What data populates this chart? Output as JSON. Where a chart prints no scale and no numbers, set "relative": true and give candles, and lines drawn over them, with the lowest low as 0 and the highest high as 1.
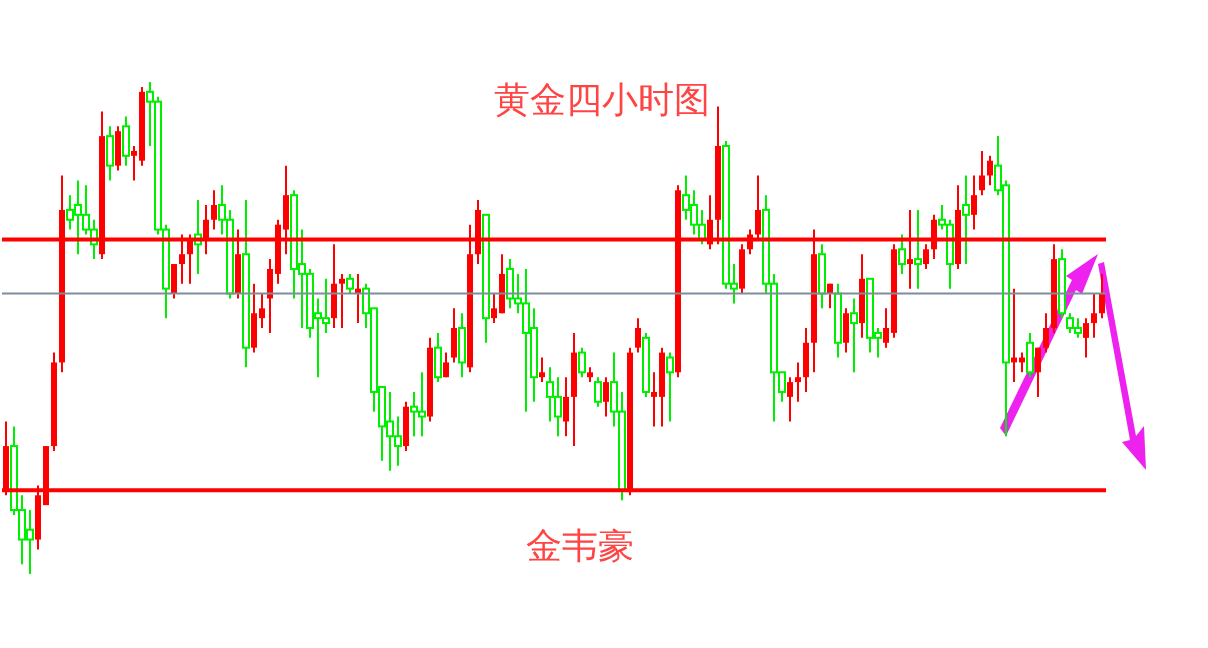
{
  "chart_data": {
    "type": "candlestick",
    "title": "黄金四小时图",
    "annotations": [
      "金韦豪"
    ],
    "relative": true,
    "tick_labels": false,
    "categories": [
      null,
      null,
      null,
      null,
      null,
      null,
      null,
      null,
      null,
      null,
      null,
      null,
      null,
      null,
      null,
      null,
      null,
      null,
      null,
      null,
      null,
      null,
      null,
      null,
      null,
      null,
      null,
      null,
      null,
      null,
      null,
      null,
      null,
      null,
      null,
      null,
      null,
      null,
      null,
      null,
      null,
      null,
      null,
      null,
      null,
      null,
      null,
      null,
      null,
      null,
      null,
      null,
      null,
      null,
      null,
      null,
      null,
      null,
      null,
      null,
      null,
      null,
      null,
      null,
      null,
      null,
      null,
      null,
      null,
      null,
      null,
      null,
      null,
      null,
      null,
      null,
      null,
      null,
      null,
      null,
      null,
      null,
      null,
      null,
      null,
      null,
      null,
      null,
      null,
      null,
      null,
      null,
      null,
      null,
      null,
      null,
      null,
      null,
      null,
      null,
      null,
      null,
      null,
      null,
      null,
      null,
      null,
      null,
      null,
      null,
      null,
      null,
      null,
      null,
      null,
      null,
      null,
      null,
      null,
      null,
      null,
      null,
      null,
      null,
      null,
      null,
      null,
      null,
      null,
      null,
      null,
      null,
      null,
      null,
      null,
      null,
      null,
      null
    ],
    "ohlc": [
      [
        0.17,
        0.31,
        0.16,
        0.26
      ],
      [
        0.26,
        0.3,
        0.12,
        0.13
      ],
      [
        0.13,
        0.16,
        0.02,
        0.07
      ],
      [
        0.09,
        0.13,
        0,
        0.07
      ],
      [
        0.07,
        0.18,
        0.05,
        0.16
      ],
      [
        0.14,
        0.26,
        0.14,
        0.26
      ],
      [
        0.26,
        0.45,
        0.25,
        0.43
      ],
      [
        0.43,
        0.81,
        0.41,
        0.74
      ],
      [
        0.74,
        0.77,
        0.7,
        0.72
      ],
      [
        0.75,
        0.8,
        0.65,
        0.73
      ],
      [
        0.73,
        0.79,
        0.69,
        0.7
      ],
      [
        0.7,
        0.72,
        0.64,
        0.67
      ],
      [
        0.65,
        0.94,
        0.64,
        0.89
      ],
      [
        0.89,
        0.91,
        0.8,
        0.83
      ],
      [
        0.83,
        0.91,
        0.82,
        0.9
      ],
      [
        0.91,
        0.93,
        0.83,
        0.85
      ],
      [
        0.85,
        0.87,
        0.8,
        0.86
      ],
      [
        0.84,
        0.99,
        0.83,
        0.98
      ],
      [
        0.98,
        1,
        0.87,
        0.96
      ],
      [
        0.96,
        0.97,
        0.69,
        0.7
      ],
      [
        0.7,
        0.71,
        0.52,
        0.58
      ],
      [
        0.57,
        0.63,
        0.56,
        0.63
      ],
      [
        0.63,
        0.69,
        0.59,
        0.65
      ],
      [
        0.65,
        0.69,
        0.59,
        0.68
      ],
      [
        0.69,
        0.76,
        0.61,
        0.67
      ],
      [
        0.68,
        0.75,
        0.65,
        0.72
      ],
      [
        0.72,
        0.78,
        0.7,
        0.75
      ],
      [
        0.75,
        0.79,
        0.69,
        0.72
      ],
      [
        0.72,
        0.74,
        0.56,
        0.57
      ],
      [
        0.57,
        0.7,
        0.56,
        0.65
      ],
      [
        0.65,
        0.76,
        0.42,
        0.46
      ],
      [
        0.46,
        0.59,
        0.45,
        0.53
      ],
      [
        0.52,
        0.57,
        0.5,
        0.54
      ],
      [
        0.56,
        0.64,
        0.49,
        0.62
      ],
      [
        0.61,
        0.72,
        0.59,
        0.71
      ],
      [
        0.7,
        0.83,
        0.65,
        0.77
      ],
      [
        0.77,
        0.78,
        0.56,
        0.62
      ],
      [
        0.63,
        0.7,
        0.5,
        0.61
      ],
      [
        0.61,
        0.62,
        0.48,
        0.5
      ],
      [
        0.53,
        0.56,
        0.4,
        0.52
      ],
      [
        0.52,
        0.6,
        0.49,
        0.51
      ],
      [
        0.52,
        0.67,
        0.5,
        0.59
      ],
      [
        0.59,
        0.61,
        0.5,
        0.6
      ],
      [
        0.6,
        0.61,
        0.57,
        0.58
      ],
      [
        0.57,
        0.61,
        0.51,
        0.58
      ],
      [
        0.58,
        0.59,
        0.5,
        0.53
      ],
      [
        0.54,
        0.54,
        0.33,
        0.37
      ],
      [
        0.38,
        0.38,
        0.23,
        0.3
      ],
      [
        0.31,
        0.37,
        0.21,
        0.28
      ],
      [
        0.28,
        0.32,
        0.22,
        0.26
      ],
      [
        0.26,
        0.35,
        0.25,
        0.34
      ],
      [
        0.34,
        0.37,
        0.28,
        0.33
      ],
      [
        0.33,
        0.41,
        0.28,
        0.32
      ],
      [
        0.32,
        0.48,
        0.31,
        0.46
      ],
      [
        0.46,
        0.49,
        0.39,
        0.4
      ],
      [
        0.4,
        0.45,
        0.4,
        0.43
      ],
      [
        0.44,
        0.54,
        0.43,
        0.5
      ],
      [
        0.5,
        0.53,
        0.4,
        0.43
      ],
      [
        0.42,
        0.71,
        0.41,
        0.65
      ],
      [
        0.65,
        0.76,
        0.63,
        0.74
      ],
      [
        0.73,
        0.73,
        0.47,
        0.52
      ],
      [
        0.52,
        0.57,
        0.51,
        0.54
      ],
      [
        0.53,
        0.65,
        0.53,
        0.61
      ],
      [
        0.62,
        0.64,
        0.54,
        0.56
      ],
      [
        0.56,
        0.61,
        0.53,
        0.55
      ],
      [
        0.55,
        0.62,
        0.33,
        0.49
      ],
      [
        0.5,
        0.54,
        0.35,
        0.4
      ],
      [
        0.4,
        0.44,
        0.39,
        0.41
      ],
      [
        0.39,
        0.42,
        0.31,
        0.36
      ],
      [
        0.36,
        0.4,
        0.28,
        0.32
      ],
      [
        0.31,
        0.4,
        0.28,
        0.36
      ],
      [
        0.36,
        0.49,
        0.26,
        0.45
      ],
      [
        0.45,
        0.46,
        0.4,
        0.41
      ],
      [
        0.4,
        0.42,
        0.39,
        0.41
      ],
      [
        0.39,
        0.4,
        0.34,
        0.35
      ],
      [
        0.35,
        0.4,
        0.32,
        0.39
      ],
      [
        0.39,
        0.45,
        0.3,
        0.33
      ],
      [
        0.33,
        0.37,
        0.15,
        0.17
      ],
      [
        0.17,
        0.46,
        0.16,
        0.45
      ],
      [
        0.46,
        0.52,
        0.45,
        0.5
      ],
      [
        0.48,
        0.49,
        0.36,
        0.37
      ],
      [
        0.36,
        0.41,
        0.3,
        0.37
      ],
      [
        0.36,
        0.46,
        0.3,
        0.45
      ],
      [
        0.44,
        0.45,
        0.31,
        0.41
      ],
      [
        0.41,
        0.79,
        0.4,
        0.78
      ],
      [
        0.77,
        0.81,
        0.72,
        0.74
      ],
      [
        0.75,
        0.78,
        0.69,
        0.71
      ],
      [
        0.71,
        0.74,
        0.67,
        0.68
      ],
      [
        0.67,
        0.77,
        0.66,
        0.72
      ],
      [
        0.72,
        0.95,
        0.67,
        0.87
      ],
      [
        0.87,
        0.88,
        0.58,
        0.59
      ],
      [
        0.59,
        0.63,
        0.55,
        0.58
      ],
      [
        0.58,
        0.67,
        0.57,
        0.66
      ],
      [
        0.66,
        0.7,
        0.65,
        0.69
      ],
      [
        0.69,
        0.81,
        0.68,
        0.74
      ],
      [
        0.74,
        0.77,
        0.57,
        0.59
      ],
      [
        0.59,
        0.61,
        0.31,
        0.41
      ],
      [
        0.41,
        0.41,
        0.35,
        0.37
      ],
      [
        0.36,
        0.4,
        0.31,
        0.39
      ],
      [
        0.39,
        0.43,
        0.35,
        0.4
      ],
      [
        0.4,
        0.5,
        0.37,
        0.47
      ],
      [
        0.47,
        0.7,
        0.41,
        0.65
      ],
      [
        0.65,
        0.67,
        0.54,
        0.57
      ],
      [
        0.57,
        0.59,
        0.54,
        0.59
      ],
      [
        0.57,
        0.59,
        0.44,
        0.47
      ],
      [
        0.47,
        0.54,
        0.45,
        0.53
      ],
      [
        0.53,
        0.56,
        0.41,
        0.51
      ],
      [
        0.51,
        0.65,
        0.48,
        0.6
      ],
      [
        0.6,
        0.6,
        0.45,
        0.48
      ],
      [
        0.49,
        0.5,
        0.44,
        0.48
      ],
      [
        0.47,
        0.54,
        0.46,
        0.5
      ],
      [
        0.49,
        0.67,
        0.48,
        0.66
      ],
      [
        0.66,
        0.69,
        0.61,
        0.63
      ],
      [
        0.63,
        0.74,
        0.58,
        0.64
      ],
      [
        0.64,
        0.74,
        0.58,
        0.63
      ],
      [
        0.63,
        0.67,
        0.62,
        0.66
      ],
      [
        0.66,
        0.73,
        0.64,
        0.72
      ],
      [
        0.72,
        0.75,
        0.7,
        0.71
      ],
      [
        0.71,
        0.72,
        0.58,
        0.63
      ],
      [
        0.63,
        0.79,
        0.62,
        0.74
      ],
      [
        0.75,
        0.81,
        0.63,
        0.73
      ],
      [
        0.73,
        0.81,
        0.7,
        0.77
      ],
      [
        0.78,
        0.86,
        0.77,
        0.81
      ],
      [
        0.81,
        0.85,
        0.79,
        0.84
      ],
      [
        0.83,
        0.89,
        0.77,
        0.78
      ],
      [
        0.79,
        0.8,
        0.28,
        0.43
      ],
      [
        0.43,
        0.58,
        0.39,
        0.44
      ],
      [
        0.43,
        0.45,
        0.41,
        0.44
      ],
      [
        0.47,
        0.49,
        0.4,
        0.41
      ],
      [
        0.41,
        0.46,
        0.36,
        0.46
      ],
      [
        0.46,
        0.53,
        0.45,
        0.5
      ],
      [
        0.5,
        0.67,
        0.49,
        0.64
      ],
      [
        0.64,
        0.66,
        0.52,
        0.53
      ],
      [
        0.52,
        0.53,
        0.49,
        0.5
      ],
      [
        0.5,
        0.52,
        0.48,
        0.49
      ],
      [
        0.48,
        0.52,
        0.44,
        0.51
      ],
      [
        0.51,
        0.57,
        0.48,
        0.53
      ],
      [
        0.53,
        0.61,
        0.52,
        0.57
      ]
    ],
    "colors": [
      "#ff0000",
      "#00ee00",
      "#00ee00",
      "#00ee00",
      "#ff0000",
      "#ff0000",
      "#ff0000",
      "#ff0000",
      "#00ee00",
      "#00ee00",
      "#00ee00",
      "#00ee00",
      "#ff0000",
      "#00ee00",
      "#ff0000",
      "#00ee00",
      "#ff0000",
      "#ff0000",
      "#00ee00",
      "#00ee00",
      "#00ee00",
      "#ff0000",
      "#ff0000",
      "#ff0000",
      "#00ee00",
      "#ff0000",
      "#ff0000",
      "#00ee00",
      "#00ee00",
      "#ff0000",
      "#00ee00",
      "#ff0000",
      "#ff0000",
      "#ff0000",
      "#ff0000",
      "#ff0000",
      "#00ee00",
      "#00ee00",
      "#00ee00",
      "#00ee00",
      "#00ee00",
      "#ff0000",
      "#ff0000",
      "#00ee00",
      "#ff0000",
      "#00ee00",
      "#00ee00",
      "#00ee00",
      "#00ee00",
      "#00ee00",
      "#ff0000",
      "#00ee00",
      "#00ee00",
      "#ff0000",
      "#00ee00",
      "#ff0000",
      "#ff0000",
      "#00ee00",
      "#ff0000",
      "#ff0000",
      "#00ee00",
      "#ff0000",
      "#ff0000",
      "#00ee00",
      "#00ee00",
      "#00ee00",
      "#00ee00",
      "#ff0000",
      "#00ee00",
      "#00ee00",
      "#ff0000",
      "#ff0000",
      "#00ee00",
      "#ff0000",
      "#00ee00",
      "#ff0000",
      "#00ee00",
      "#00ee00",
      "#ff0000",
      "#ff0000",
      "#00ee00",
      "#ff0000",
      "#ff0000",
      "#00ee00",
      "#ff0000",
      "#00ee00",
      "#00ee00",
      "#00ee00",
      "#ff0000",
      "#ff0000",
      "#00ee00",
      "#00ee00",
      "#ff0000",
      "#ff0000",
      "#ff0000",
      "#00ee00",
      "#00ee00",
      "#00ee00",
      "#ff0000",
      "#ff0000",
      "#ff0000",
      "#ff0000",
      "#00ee00",
      "#ff0000",
      "#00ee00",
      "#ff0000",
      "#00ee00",
      "#ff0000",
      "#00ee00",
      "#00ee00",
      "#ff0000",
      "#ff0000",
      "#00ee00",
      "#ff0000",
      "#00ee00",
      "#ff0000",
      "#ff0000",
      "#00ee00",
      "#00ee00",
      "#ff0000",
      "#00ee00",
      "#ff0000",
      "#ff0000",
      "#ff0000",
      "#00ee00",
      "#00ee00",
      "#ff0000",
      "#ff0000",
      "#00ee00",
      "#ff0000",
      "#ff0000",
      "#ff0000",
      "#00ee00",
      "#00ee00",
      "#00ee00",
      "#ff0000",
      "#ff0000",
      "#ff0000"
    ],
    "ref_lines": [
      {
        "axis": "y",
        "value": 0.68,
        "color": "#ff0000"
      },
      {
        "axis": "y",
        "value": 0.57,
        "color": "#7f8c99"
      },
      {
        "axis": "y",
        "value": 0.17,
        "color": "#ff0000"
      }
    ]
  }
}
